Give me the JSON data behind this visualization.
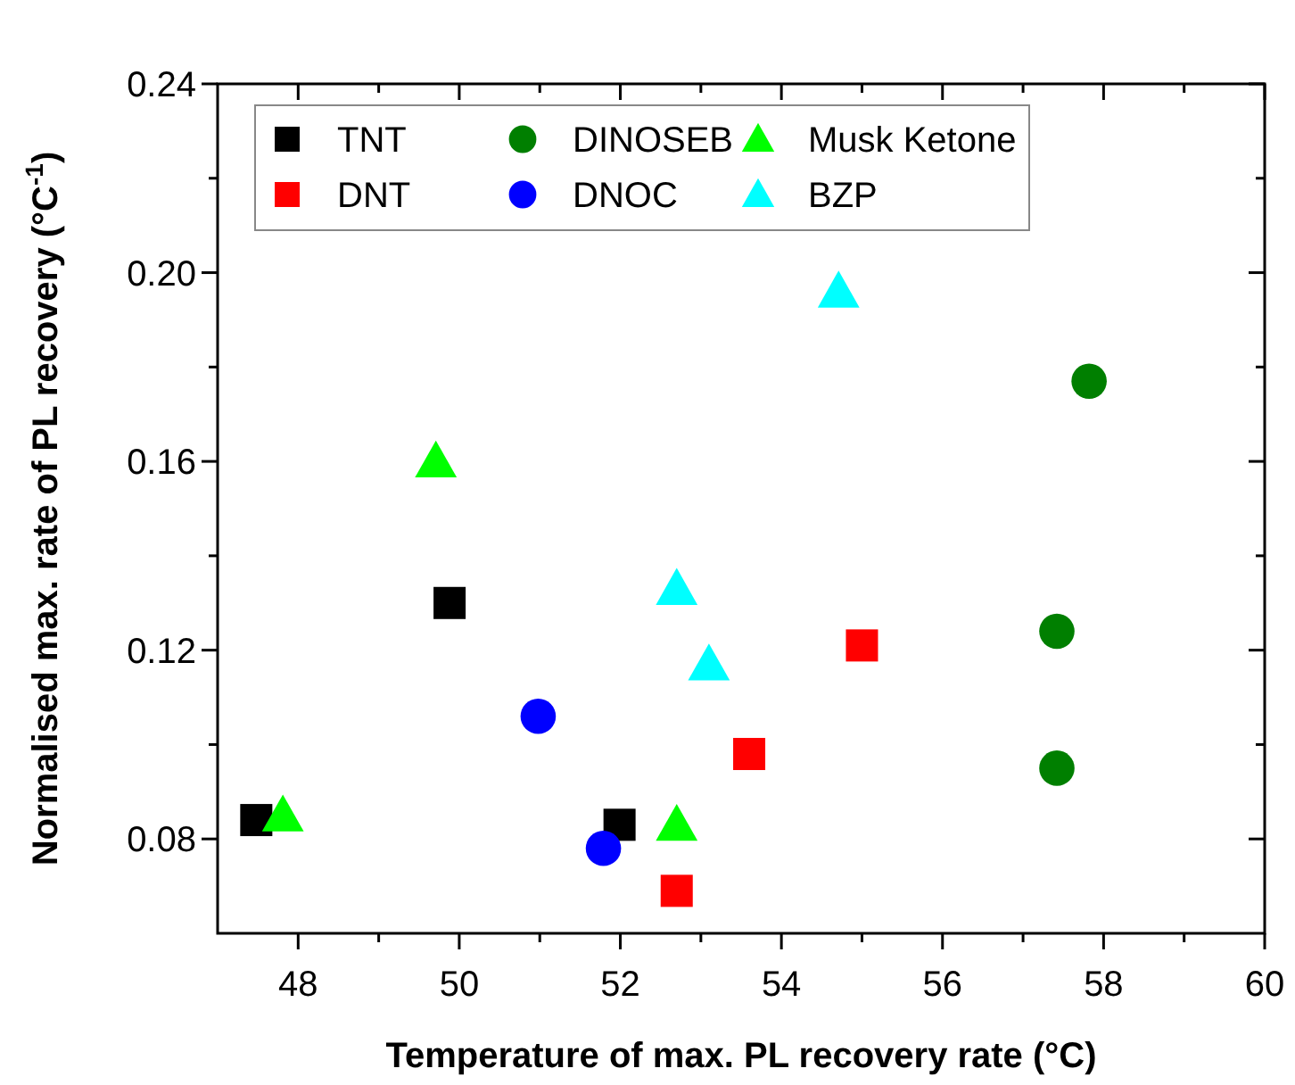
{
  "chart_data": {
    "type": "scatter",
    "xlabel": "Temperature of max. PL recovery rate (°C)",
    "ylabel": "Normalised max. rate of PL recovery (°C$^{-1}$)",
    "xlim": [
      47,
      60
    ],
    "ylim": [
      0.06,
      0.24
    ],
    "xticks": [
      48,
      {
        "value": 49,
        "label": null
      },
      50,
      {
        "value": 51,
        "label": null
      },
      52,
      {
        "value": 53,
        "label": null
      },
      54,
      {
        "value": 55,
        "label": null
      },
      56,
      {
        "value": 57,
        "label": null
      },
      58,
      {
        "value": 59,
        "label": null
      },
      60
    ],
    "yticks": [
      0.08,
      {
        "value": 0.1,
        "label": null
      },
      0.12,
      {
        "value": 0.14,
        "label": null
      },
      0.16,
      {
        "value": 0.18,
        "label": null
      },
      {
        "value": 0.2,
        "label": "0.20"
      },
      {
        "value": 0.22,
        "label": null
      },
      0.24
    ],
    "grid": false,
    "legend": "top",
    "series": [
      {
        "name": "TNT",
        "color": "#000000",
        "marker": "square",
        "x": [
          47.48,
          49.88,
          51.99
        ],
        "values": [
          0.084,
          0.13,
          0.083
        ]
      },
      {
        "name": "DNT",
        "color": "#ff0000",
        "marker": "square",
        "x": [
          52.7,
          53.6,
          55.0
        ],
        "values": [
          0.069,
          0.098,
          0.121
        ]
      },
      {
        "name": "DINOSEB",
        "color": "#007f00",
        "marker": "circle",
        "x": [
          57.82,
          57.42,
          57.42
        ],
        "values": [
          0.177,
          0.124,
          0.095
        ]
      },
      {
        "name": "DNOC",
        "color": "#0000ff",
        "marker": "circle",
        "x": [
          50.98,
          51.79
        ],
        "values": [
          0.106,
          0.078
        ]
      },
      {
        "name": "Musk Ketone",
        "color": "#00ff00",
        "marker": "triangle",
        "x": [
          47.81,
          49.71,
          52.7
        ],
        "values": [
          0.085,
          0.16,
          0.083
        ]
      },
      {
        "name": "BZP",
        "color": "#00ffff",
        "marker": "triangle",
        "x": [
          54.71,
          52.7,
          53.1
        ],
        "values": [
          0.196,
          0.133,
          0.117
        ]
      }
    ]
  }
}
